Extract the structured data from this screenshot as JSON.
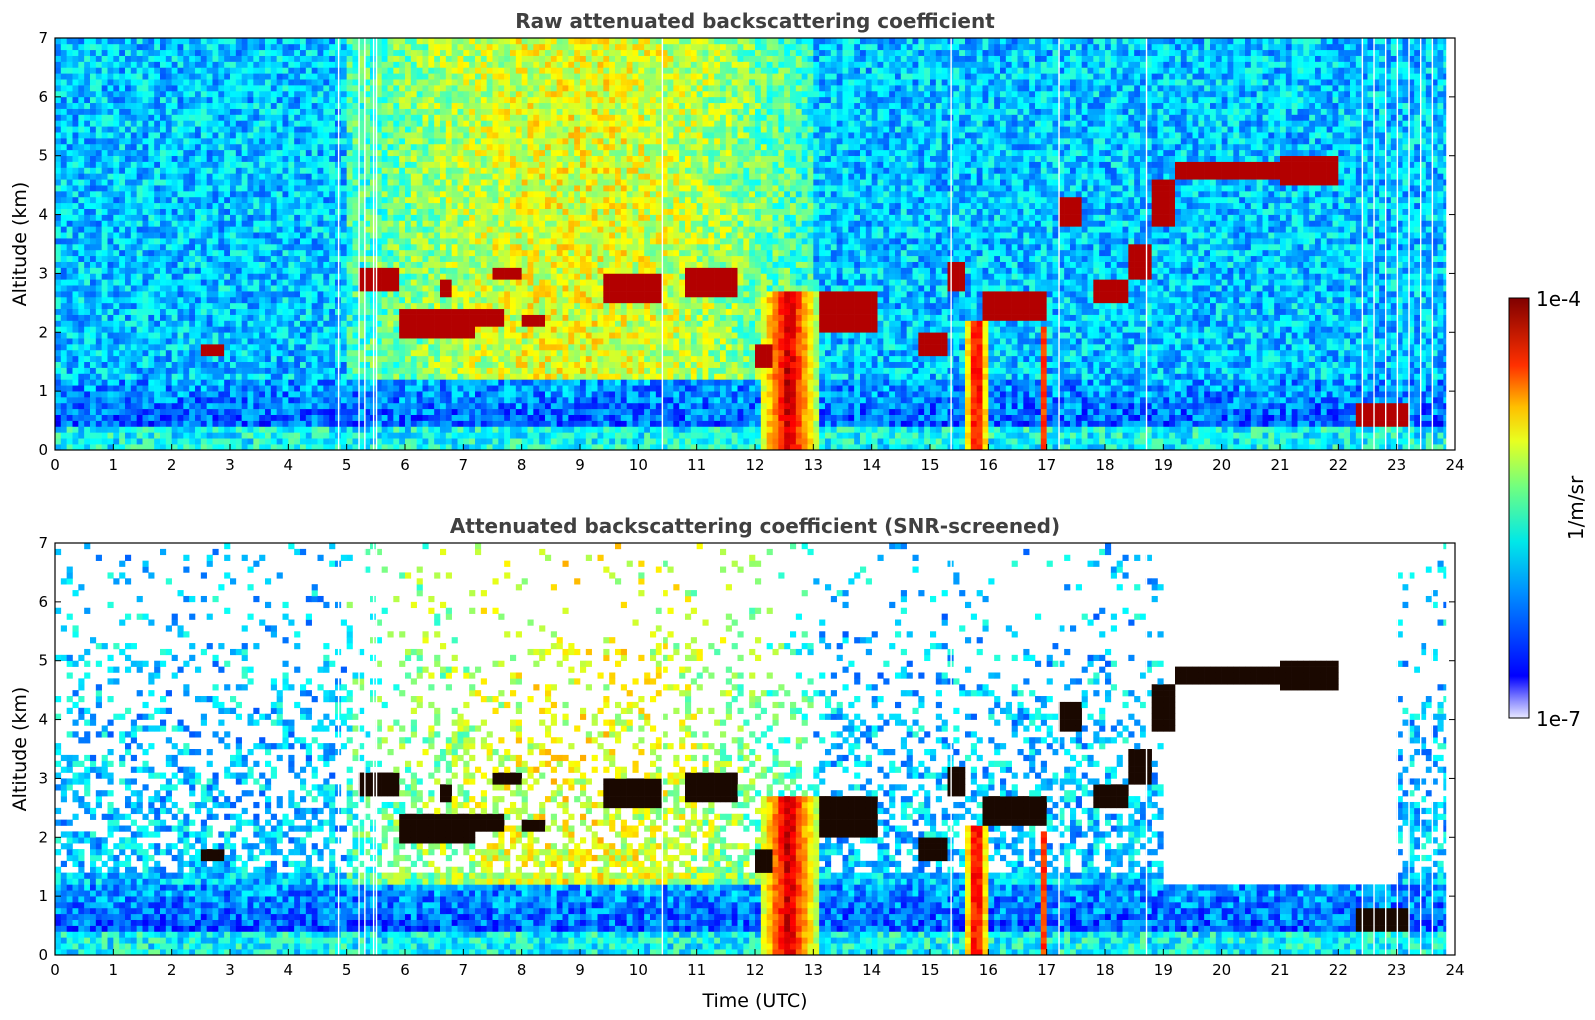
{
  "chart_data": [
    {
      "type": "heatmap",
      "title": "Raw attenuated backscattering coefficient",
      "xlabel": "",
      "ylabel": "Altitude (km)",
      "xlim": [
        0,
        24
      ],
      "ylim": [
        0,
        7
      ],
      "x_ticks": [
        "0",
        "1",
        "2",
        "3",
        "4",
        "5",
        "6",
        "7",
        "8",
        "9",
        "10",
        "11",
        "12",
        "13",
        "14",
        "15",
        "16",
        "17",
        "18",
        "19",
        "20",
        "21",
        "22",
        "23",
        "24"
      ],
      "y_ticks": [
        "0",
        "1",
        "2",
        "3",
        "4",
        "5",
        "6",
        "7"
      ],
      "features": {
        "cloud_layers": [
          {
            "t0": 2.55,
            "t1": 2.85,
            "alt": 1.72,
            "th": 0.08
          },
          {
            "t0": 5.2,
            "t1": 5.9,
            "alt": 2.88,
            "th": 0.18
          },
          {
            "t0": 5.9,
            "t1": 7.2,
            "alt": 2.12,
            "th": 0.25
          },
          {
            "t0": 6.6,
            "t1": 6.8,
            "alt": 2.75,
            "th": 0.15
          },
          {
            "t0": 7.2,
            "t1": 7.7,
            "alt": 2.28,
            "th": 0.15
          },
          {
            "t0": 7.5,
            "t1": 8.0,
            "alt": 3.02,
            "th": 0.1
          },
          {
            "t0": 8.0,
            "t1": 8.45,
            "alt": 2.18,
            "th": 0.12
          },
          {
            "t0": 9.4,
            "t1": 10.4,
            "alt": 2.75,
            "th": 0.25
          },
          {
            "t0": 10.8,
            "t1": 11.7,
            "alt": 2.88,
            "th": 0.25
          },
          {
            "t0": 12.0,
            "t1": 12.3,
            "alt": 1.6,
            "th": 0.2
          },
          {
            "t0": 13.1,
            "t1": 14.1,
            "alt": 2.35,
            "th": 0.3
          },
          {
            "t0": 14.8,
            "t1": 15.3,
            "alt": 1.8,
            "th": 0.2
          },
          {
            "t0": 15.3,
            "t1": 15.6,
            "alt": 2.95,
            "th": 0.25
          },
          {
            "t0": 15.9,
            "t1": 17.0,
            "alt": 2.45,
            "th": 0.25
          },
          {
            "t0": 17.2,
            "t1": 17.55,
            "alt": 4.1,
            "th": 0.25
          },
          {
            "t0": 17.8,
            "t1": 18.4,
            "alt": 2.7,
            "th": 0.25
          },
          {
            "t0": 18.4,
            "t1": 18.8,
            "alt": 3.2,
            "th": 0.3
          },
          {
            "t0": 18.8,
            "t1": 19.2,
            "alt": 4.2,
            "th": 0.35
          },
          {
            "t0": 19.2,
            "t1": 21.0,
            "alt": 4.75,
            "th": 0.2
          },
          {
            "t0": 21.0,
            "t1": 22.0,
            "alt": 4.75,
            "th": 0.25
          },
          {
            "t0": 22.3,
            "t1": 23.2,
            "alt": 0.6,
            "th": 0.2
          }
        ],
        "precipitation_columns": [
          {
            "t0": 12.1,
            "t1": 13.05,
            "top": 2.7
          },
          {
            "t0": 15.6,
            "t1": 16.0,
            "top": 2.2
          },
          {
            "t0": 16.85,
            "t1": 17.0,
            "top": 2.1
          }
        ]
      }
    },
    {
      "type": "heatmap",
      "title": "Attenuated backscattering coefficient (SNR-screened)",
      "xlabel": "Time (UTC)",
      "ylabel": "Altitude (km)",
      "xlim": [
        0,
        24
      ],
      "ylim": [
        0,
        7
      ],
      "x_ticks": [
        "0",
        "1",
        "2",
        "3",
        "4",
        "5",
        "6",
        "7",
        "8",
        "9",
        "10",
        "11",
        "12",
        "13",
        "14",
        "15",
        "16",
        "17",
        "18",
        "19",
        "20",
        "21",
        "22",
        "23",
        "24"
      ],
      "y_ticks": [
        "0",
        "1",
        "2",
        "3",
        "4",
        "5",
        "6",
        "7"
      ]
    }
  ],
  "colorbar": {
    "label": "1/m/sr",
    "max_label": "1e-4",
    "min_label": "1e-7",
    "colormap": "jet",
    "range": [
      1e-07,
      0.0001
    ],
    "scale": "log"
  }
}
